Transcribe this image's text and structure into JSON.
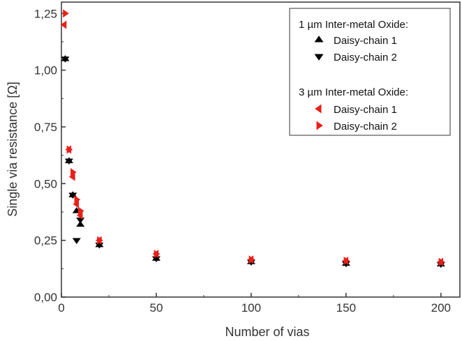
{
  "chart_data": {
    "type": "scatter",
    "title": "",
    "xlabel": "Number of vias",
    "ylabel": "Single via resistance [Ω]",
    "xlim": [
      0,
      210
    ],
    "ylim": [
      0,
      1.3
    ],
    "x_ticks": [
      0,
      50,
      100,
      150,
      200
    ],
    "x_tick_labels": [
      "0",
      "50",
      "100",
      "150",
      "200"
    ],
    "y_ticks": [
      0,
      0.25,
      0.5,
      0.75,
      1.0,
      1.25
    ],
    "y_tick_labels": [
      "0,00",
      "0,25",
      "0,50",
      "0,75",
      "1,00",
      "1,25"
    ],
    "grid": false,
    "legend_position": "top-right",
    "legend_groups": [
      {
        "title": "1 µm Inter-metal Oxide:",
        "series": [
          0,
          1
        ]
      },
      {
        "title": "3 µm Inter-metal Oxide:",
        "series": [
          2,
          3
        ]
      }
    ],
    "series": [
      {
        "name": "Daisy-chain 1",
        "marker": "triangle-up",
        "color": "#000000",
        "points": [
          [
            2,
            1.05
          ],
          [
            4,
            0.6
          ],
          [
            6,
            0.45
          ],
          [
            8,
            0.38
          ],
          [
            10,
            0.32
          ],
          [
            20,
            0.23
          ],
          [
            50,
            0.17
          ],
          [
            100,
            0.155
          ],
          [
            150,
            0.148
          ],
          [
            200,
            0.145
          ]
        ]
      },
      {
        "name": "Daisy-chain 2",
        "marker": "triangle-down",
        "color": "#000000",
        "points": [
          [
            2,
            1.05
          ],
          [
            4,
            0.6
          ],
          [
            6,
            0.45
          ],
          [
            8,
            0.25
          ],
          [
            10,
            0.34
          ],
          [
            20,
            0.23
          ],
          [
            50,
            0.17
          ],
          [
            100,
            0.155
          ],
          [
            150,
            0.148
          ],
          [
            200,
            0.145
          ]
        ]
      },
      {
        "name": "Daisy-chain 1",
        "marker": "triangle-left",
        "color": "#e8201a",
        "points": [
          [
            1.5,
            1.2
          ],
          [
            4,
            0.65
          ],
          [
            6,
            0.53
          ],
          [
            8,
            0.41
          ],
          [
            10,
            0.36
          ],
          [
            20,
            0.25
          ],
          [
            50,
            0.19
          ],
          [
            100,
            0.165
          ],
          [
            150,
            0.16
          ],
          [
            200,
            0.155
          ]
        ]
      },
      {
        "name": "Daisy-chain 2",
        "marker": "triangle-right",
        "color": "#e8201a",
        "points": [
          [
            2,
            1.25
          ],
          [
            4,
            0.65
          ],
          [
            6,
            0.55
          ],
          [
            8,
            0.43
          ],
          [
            10,
            0.38
          ],
          [
            20,
            0.25
          ],
          [
            50,
            0.19
          ],
          [
            100,
            0.165
          ],
          [
            150,
            0.16
          ],
          [
            200,
            0.155
          ]
        ]
      }
    ]
  }
}
